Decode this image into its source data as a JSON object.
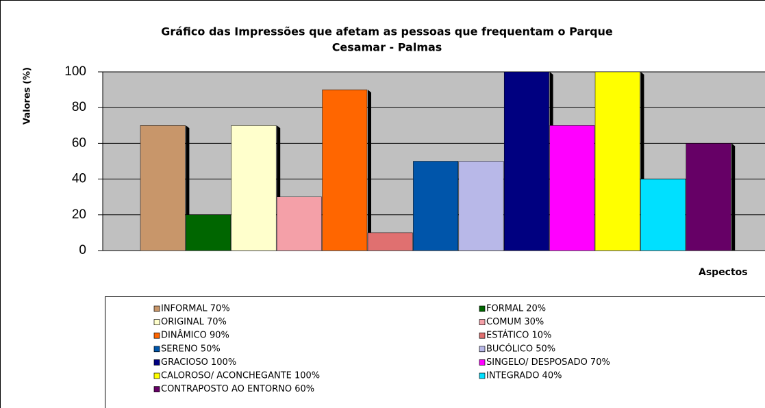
{
  "chart_data": {
    "type": "bar",
    "title": [
      "Gráfico das Impressões que afetam as pessoas que frequentam o Parque",
      "Cesamar - Palmas"
    ],
    "y_label": "Valores (%)",
    "x_label": "Aspectos",
    "ylim": [
      0,
      100
    ],
    "yticks": [
      0,
      20,
      40,
      60,
      80,
      100
    ],
    "grid": true,
    "series": [
      {
        "name": "INFORMAL 70%",
        "color": "#c8966a",
        "values": [
          70
        ]
      },
      {
        "name": "FORMAL 20%",
        "color": "#006600",
        "values": [
          20
        ]
      },
      {
        "name": "ORIGINAL 70%",
        "color": "#ffffcc",
        "values": [
          70
        ]
      },
      {
        "name": "COMUM 30%",
        "color": "#f4a0a8",
        "values": [
          30
        ]
      },
      {
        "name": "DINÂMICO 90%",
        "color": "#ff6600",
        "values": [
          90
        ]
      },
      {
        "name": "ESTÁTICO 10%",
        "color": "#e07070",
        "values": [
          10
        ]
      },
      {
        "name": "SERENO 50%",
        "color": "#0055aa",
        "values": [
          50
        ]
      },
      {
        "name": "BUCÓLICO 50%",
        "color": "#b8b8e8",
        "values": [
          50
        ]
      },
      {
        "name": "GRACIOSO 100%",
        "color": "#000080",
        "values": [
          100
        ]
      },
      {
        "name": "SINGELO/ DESPOSADO 70%",
        "color": "#ff00ff",
        "values": [
          70
        ]
      },
      {
        "name": "CALOROSO/ ACONCHEGANTE 100%",
        "color": "#ffff00",
        "values": [
          100
        ]
      },
      {
        "name": "INTEGRADO 40%",
        "color": "#00e0ff",
        "values": [
          40
        ]
      },
      {
        "name": "CONTRAPOSTO AO ENTORNO 60%",
        "color": "#660066",
        "values": [
          60
        ]
      }
    ]
  }
}
